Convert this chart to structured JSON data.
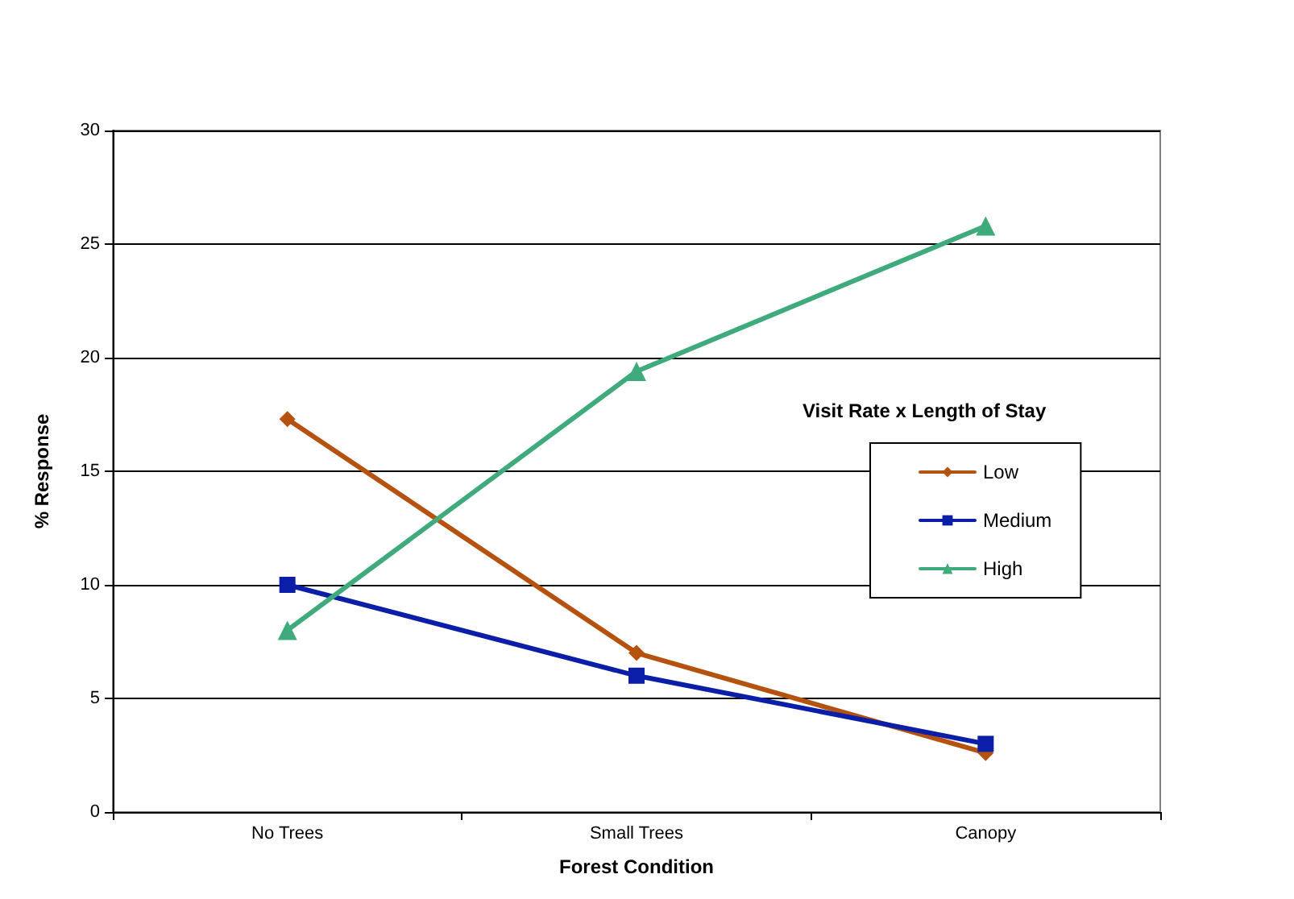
{
  "chart_data": {
    "type": "line",
    "xlabel": "Forest Condition",
    "ylabel": "% Response",
    "legend_title": "Visit Rate x Length of Stay",
    "categories": [
      "No Trees",
      "Small Trees",
      "Canopy"
    ],
    "series": [
      {
        "name": "Low",
        "color": "#b5520f",
        "marker": "diamond",
        "values": [
          17.3,
          7.0,
          2.6
        ]
      },
      {
        "name": "Medium",
        "color": "#0a1ea8",
        "marker": "square",
        "values": [
          10,
          6,
          3
        ]
      },
      {
        "name": "High",
        "color": "#3fab7c",
        "marker": "triangle",
        "values": [
          8,
          19.4,
          25.8
        ]
      }
    ],
    "ylim": [
      0,
      30
    ],
    "yticks": [
      0,
      5,
      10,
      15,
      20,
      25,
      30
    ],
    "grid": "y",
    "legend": "right",
    "line_style": "solid"
  }
}
